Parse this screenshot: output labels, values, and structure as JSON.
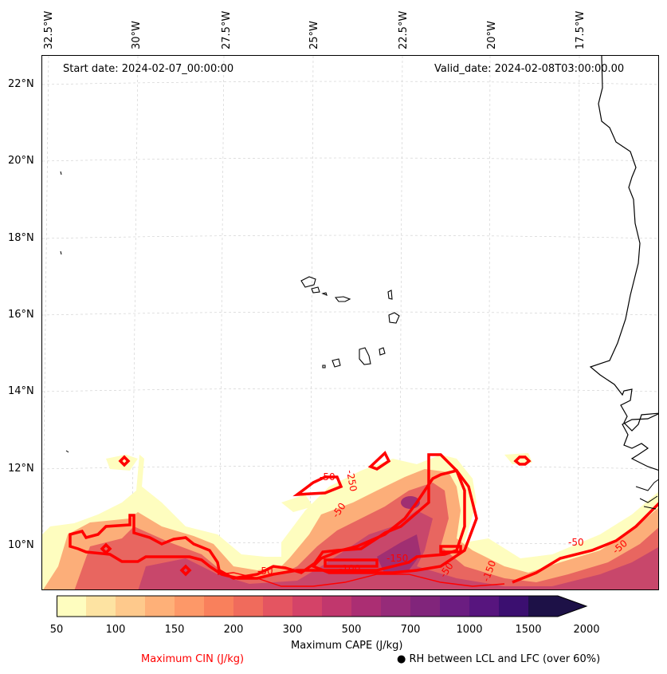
{
  "map": {
    "start_date": "Start date: 2024-02-07_00:00:00",
    "valid_date": "Valid_date: 2024-02-08T03:00:00.00",
    "lon_labels": [
      "32.5°W",
      "30°W",
      "27.5°W",
      "25°W",
      "22.5°W",
      "20°W",
      "17.5°W"
    ],
    "lat_labels": [
      "22°N",
      "20°N",
      "18°N",
      "16°N",
      "14°N",
      "12°N",
      "10°N"
    ],
    "contour_labels": [
      "-50",
      "-250",
      "-50",
      "-150",
      "-100",
      "-50",
      "-50",
      "-50",
      "-150",
      "-50"
    ]
  },
  "colorbar": {
    "label": "Maximum CAPE (J/kg)",
    "ticks": [
      "50",
      "100",
      "150",
      "200",
      "300",
      "500",
      "700",
      "1000",
      "1500",
      "2000"
    ],
    "colors": [
      "#fefdbf",
      "#fde3a2",
      "#fec98c",
      "#feb078",
      "#fd9868",
      "#f9805c",
      "#f06b5c",
      "#e45561",
      "#d44368",
      "#c1376d",
      "#ab2e73",
      "#962b79",
      "#81257b",
      "#6b1d81",
      "#57157e",
      "#3b0f70",
      "#1d1147"
    ]
  },
  "legend": {
    "cin_label": "Maximum CIN (J/kg)",
    "cin_color": "#ff0000",
    "rh_marker": "●",
    "rh_label": "RH between LCL and LFC (over 60%)"
  }
}
